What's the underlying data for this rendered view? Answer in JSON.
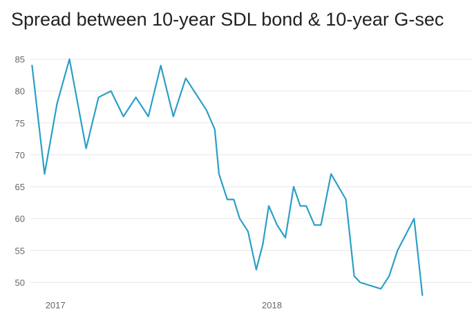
{
  "chart_data": {
    "type": "line",
    "title": "Spread between 10-year SDL bond & 10-year G-sec",
    "xlabel": "",
    "ylabel": "",
    "ylim": [
      48,
      87
    ],
    "yticks": [
      50,
      55,
      60,
      65,
      70,
      75,
      80,
      85
    ],
    "ytick_labels": [
      "50",
      "55",
      "60",
      "65",
      "70",
      "75",
      "80",
      "85"
    ],
    "xticks": [
      {
        "label": "2017",
        "x": "2017-01-01"
      },
      {
        "label": "2018",
        "x": "2018-01-01"
      }
    ],
    "xlim": [
      "2016-12-12",
      "2018-12-31"
    ],
    "grid": true,
    "legend": "none",
    "series": [
      {
        "color": "#2a9ec7",
        "points": [
          {
            "x": "2016-12-16",
            "y": 84
          },
          {
            "x": "2017-01-06",
            "y": 67
          },
          {
            "x": "2017-01-27",
            "y": 78
          },
          {
            "x": "2017-02-17",
            "y": 85
          },
          {
            "x": "2017-03-17",
            "y": 71
          },
          {
            "x": "2017-04-07",
            "y": 79
          },
          {
            "x": "2017-04-28",
            "y": 80
          },
          {
            "x": "2017-05-19",
            "y": 76
          },
          {
            "x": "2017-06-09",
            "y": 79
          },
          {
            "x": "2017-06-30",
            "y": 76
          },
          {
            "x": "2017-07-21",
            "y": 84
          },
          {
            "x": "2017-08-11",
            "y": 76
          },
          {
            "x": "2017-09-01",
            "y": 82
          },
          {
            "x": "2017-09-22",
            "y": 79
          },
          {
            "x": "2017-10-06",
            "y": 77
          },
          {
            "x": "2017-10-20",
            "y": 74
          },
          {
            "x": "2017-10-27",
            "y": 67
          },
          {
            "x": "2017-11-10",
            "y": 63
          },
          {
            "x": "2017-11-21",
            "y": 63
          },
          {
            "x": "2017-12-01",
            "y": 60
          },
          {
            "x": "2017-12-15",
            "y": 58
          },
          {
            "x": "2017-12-29",
            "y": 52
          },
          {
            "x": "2018-01-09",
            "y": 56
          },
          {
            "x": "2018-01-19",
            "y": 62
          },
          {
            "x": "2018-02-02",
            "y": 59
          },
          {
            "x": "2018-02-16",
            "y": 57
          },
          {
            "x": "2018-03-02",
            "y": 65
          },
          {
            "x": "2018-03-13",
            "y": 62
          },
          {
            "x": "2018-03-23",
            "y": 62
          },
          {
            "x": "2018-04-06",
            "y": 59
          },
          {
            "x": "2018-04-17",
            "y": 59
          },
          {
            "x": "2018-05-04",
            "y": 67
          },
          {
            "x": "2018-05-29",
            "y": 63
          },
          {
            "x": "2018-06-12",
            "y": 51
          },
          {
            "x": "2018-06-22",
            "y": 50
          },
          {
            "x": "2018-07-27",
            "y": 49
          },
          {
            "x": "2018-08-10",
            "y": 51
          },
          {
            "x": "2018-08-24",
            "y": 55
          },
          {
            "x": "2018-09-21",
            "y": 60
          },
          {
            "x": "2018-10-05",
            "y": 48
          }
        ]
      }
    ]
  }
}
